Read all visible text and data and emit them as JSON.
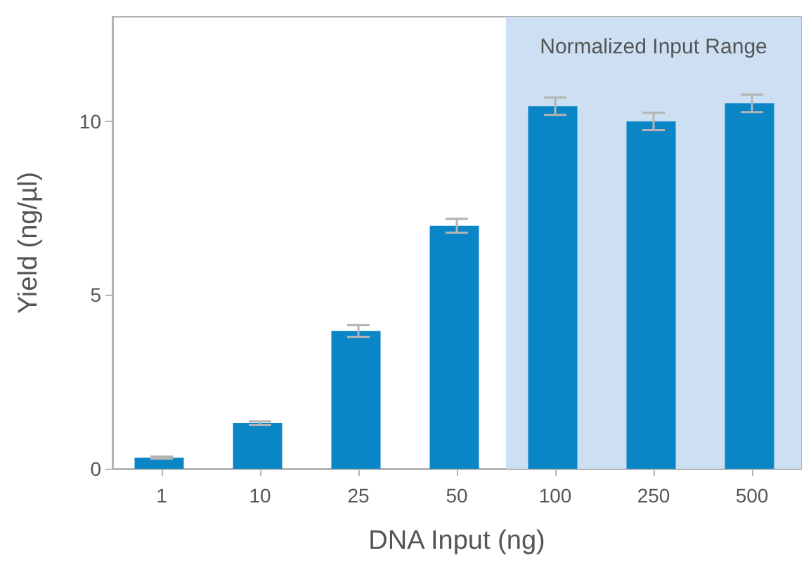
{
  "chart_data": {
    "type": "bar",
    "xlabel": "DNA Input (ng)",
    "ylabel": "Yield (ng/µl)",
    "categories": [
      "1",
      "10",
      "25",
      "50",
      "100",
      "250",
      "500"
    ],
    "values": [
      0.32,
      1.31,
      3.96,
      6.99,
      10.43,
      9.99,
      10.51
    ],
    "errors": [
      0.03,
      0.05,
      0.17,
      0.2,
      0.25,
      0.25,
      0.25
    ],
    "color": "#0a86c7",
    "ylim": [
      0,
      13
    ],
    "yticks": [
      0,
      5,
      10
    ],
    "bands": [
      {
        "axis": "x",
        "from": "100",
        "to": "500",
        "label": "Normalized Input Range",
        "color": "#cddff2"
      }
    ],
    "grid": false
  }
}
